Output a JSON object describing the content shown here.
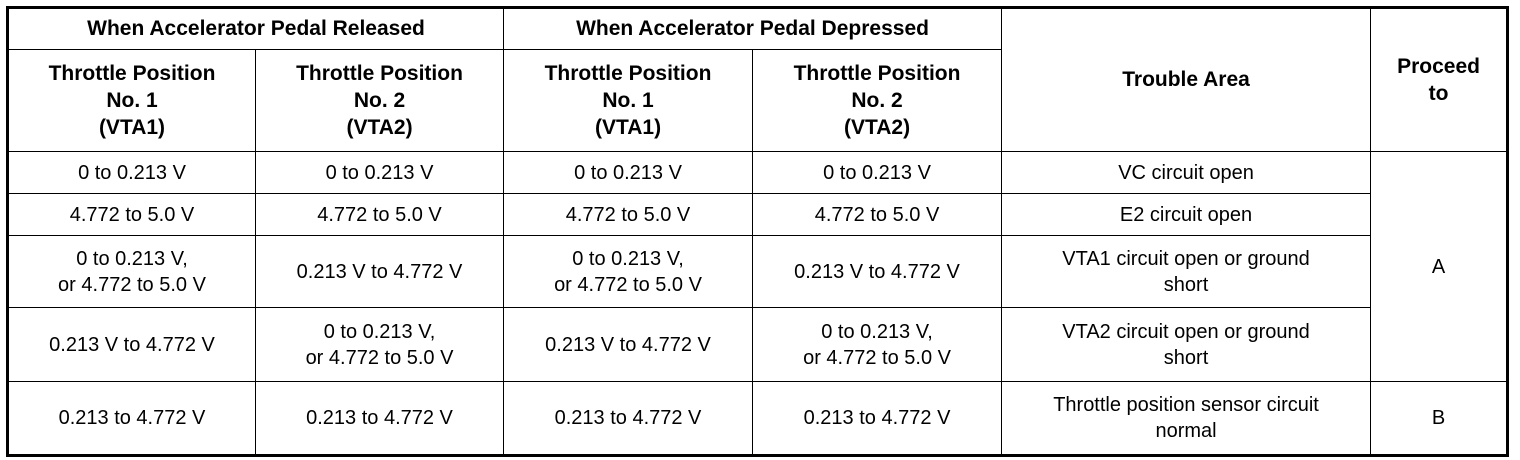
{
  "header": {
    "released_group": "When Accelerator Pedal Released",
    "depressed_group": "When Accelerator Pedal Depressed",
    "col_tp1_released": "Throttle Position\nNo. 1\n(VTA1)",
    "col_tp2_released": "Throttle Position\nNo. 2\n(VTA2)",
    "col_tp1_depressed": "Throttle Position\nNo. 1\n(VTA1)",
    "col_tp2_depressed": "Throttle Position\nNo. 2\n(VTA2)",
    "trouble_area": "Trouble Area",
    "proceed_to": "Proceed\nto"
  },
  "rows": [
    {
      "released_vta1": "0 to 0.213 V",
      "released_vta2": "0 to 0.213 V",
      "depressed_vta1": "0 to 0.213 V",
      "depressed_vta2": "0 to 0.213 V",
      "trouble_area": "VC circuit open"
    },
    {
      "released_vta1": "4.772 to 5.0 V",
      "released_vta2": "4.772 to 5.0 V",
      "depressed_vta1": "4.772 to 5.0 V",
      "depressed_vta2": "4.772 to 5.0 V",
      "trouble_area": "E2 circuit open"
    },
    {
      "released_vta1": "0 to 0.213 V,\nor 4.772 to 5.0 V",
      "released_vta2": "0.213 V to 4.772 V",
      "depressed_vta1": "0 to 0.213 V,\nor 4.772 to 5.0 V",
      "depressed_vta2": "0.213 V to 4.772 V",
      "trouble_area": "VTA1 circuit open or ground\nshort"
    },
    {
      "released_vta1": "0.213 V to 4.772 V",
      "released_vta2": "0 to 0.213 V,\nor 4.772 to 5.0 V",
      "depressed_vta1": "0.213 V to 4.772 V",
      "depressed_vta2": "0 to 0.213 V,\nor 4.772 to 5.0 V",
      "trouble_area": "VTA2 circuit open or ground\nshort"
    },
    {
      "released_vta1": "0.213 to 4.772 V",
      "released_vta2": "0.213 to 4.772 V",
      "depressed_vta1": "0.213 to 4.772 V",
      "depressed_vta2": "0.213 to 4.772 V",
      "trouble_area": "Throttle position sensor circuit\nnormal"
    }
  ],
  "proceed": {
    "group_a": "A",
    "group_b": "B"
  }
}
